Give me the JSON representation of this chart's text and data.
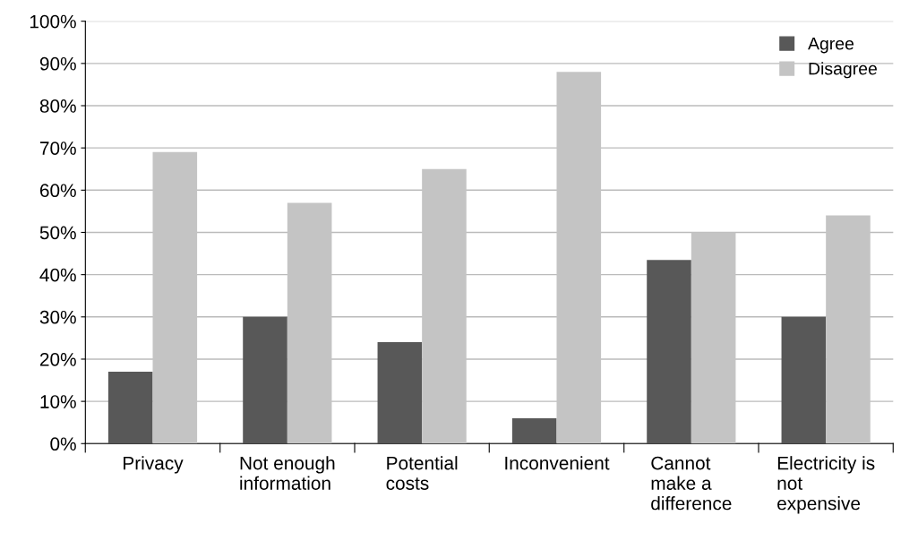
{
  "chart_data": {
    "type": "bar",
    "categories": [
      "Privacy",
      "Not enough\ninformation",
      "Potential\ncosts",
      "Inconvenient",
      "Cannot\nmake a\ndifference",
      "Electricity is\nnot\nexpensive"
    ],
    "series": [
      {
        "name": "Agree",
        "color": "#585858",
        "values": [
          17,
          30,
          24,
          6,
          43.5,
          30
        ]
      },
      {
        "name": "Disagree",
        "color": "#c4c4c4",
        "values": [
          69,
          57,
          65,
          88,
          50,
          54
        ]
      }
    ],
    "ylim": [
      0,
      100
    ],
    "yticks": [
      {
        "value": 0,
        "label": "0%"
      },
      {
        "value": 10,
        "label": "10%"
      },
      {
        "value": 20,
        "label": "20%"
      },
      {
        "value": 30,
        "label": "30%"
      },
      {
        "value": 40,
        "label": "40%"
      },
      {
        "value": 50,
        "label": "50%"
      },
      {
        "value": 60,
        "label": "60%"
      },
      {
        "value": 70,
        "label": "70%"
      },
      {
        "value": 80,
        "label": "80%"
      },
      {
        "value": 90,
        "label": "90%"
      },
      {
        "value": 100,
        "label": "100%"
      }
    ],
    "grid": "y",
    "legend": "top right"
  }
}
